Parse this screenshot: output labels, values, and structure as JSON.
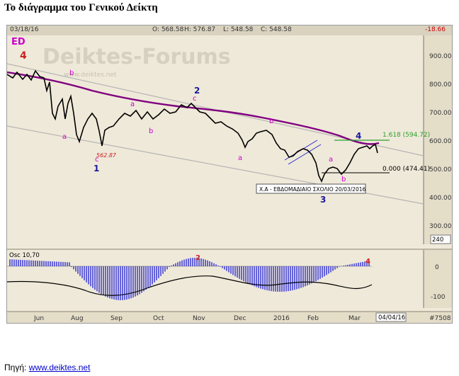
{
  "page_title": "Το διάγραμμα του Γενικού Δείκτη",
  "header": {
    "date": "03/18/16",
    "open": "O: 568.58",
    "high": "H: 576.87",
    "low": "L: 548.58",
    "close": "C: 548.58",
    "change": "-18.66"
  },
  "chart": {
    "symbol_label": "ED",
    "watermark": "Deiktes-Forums",
    "watermark_url": "www.deiktes.net",
    "price_ticks": [
      "900.00",
      "800.00",
      "700.00",
      "600.00",
      "500.00",
      "400.00",
      "300.00"
    ],
    "volume_box": "240",
    "fib_upper": "1.618 (594.72)",
    "fib_lower": "0.000 (474.41)",
    "annotation": "Χ.Α - ΕΒΔΟΜΑΔΙΑΙΟ ΣΧΟΛΙΟ 20/03/2016",
    "low_label": "562.87",
    "wave_labels": {
      "w4_top": "4",
      "w1": "1",
      "w2": "2",
      "w3": "3",
      "w4": "4",
      "a": "a",
      "b": "b",
      "c": "c"
    },
    "x_ticks": [
      "Jun",
      "Aug",
      "Sep",
      "Oct",
      "Nov",
      "Dec",
      "2016",
      "Feb",
      "Mar"
    ],
    "end_date": "04/04/16",
    "bar_count": "#7508",
    "colors": {
      "price": "#000000",
      "ma": "#800080",
      "channel": "#b0b0b0",
      "wave_main": "#1a1aa0",
      "wave_sub": "#cc00cc",
      "wave_four_red": "#cc2222",
      "fib_green": "#2e9e2e",
      "osc": "#2b2bd6"
    }
  },
  "oscillator": {
    "label": "Osc 10,70",
    "ticks": [
      "0",
      "-100"
    ],
    "wave_2": "2",
    "wave_4": "4"
  },
  "footer": {
    "source_label": "Πηγή:",
    "source_link": "www.deiktes.net"
  }
}
